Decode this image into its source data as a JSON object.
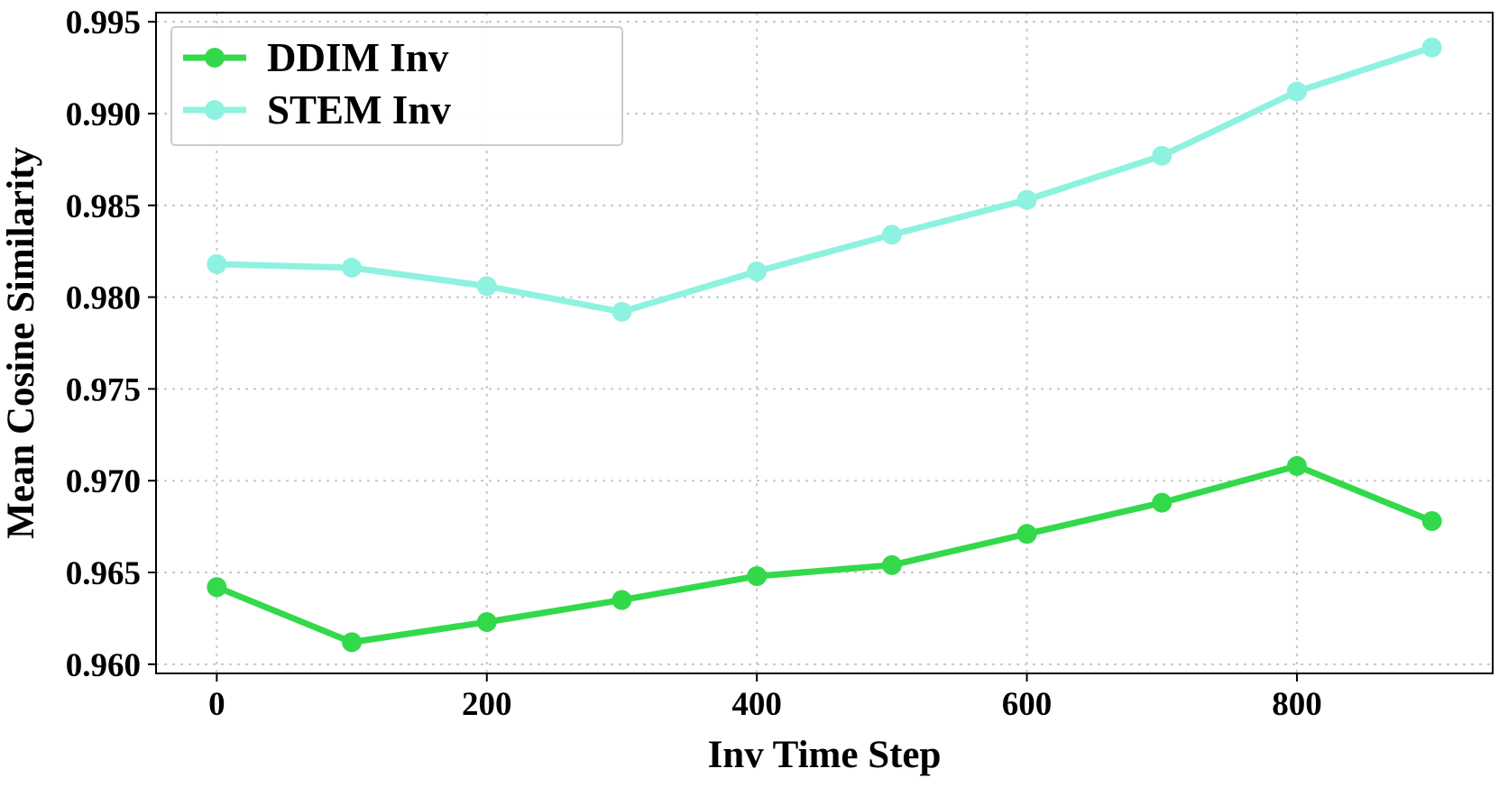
{
  "chart_data": {
    "type": "line",
    "title": "",
    "xlabel": "Inv Time Step",
    "ylabel": "Mean Cosine Similarity",
    "x": [
      0,
      100,
      200,
      300,
      400,
      500,
      600,
      700,
      800,
      900
    ],
    "xticks": [
      0,
      200,
      400,
      600,
      800
    ],
    "xtick_labels": [
      "0",
      "200",
      "400",
      "600",
      "800"
    ],
    "xlim": [
      -45,
      945
    ],
    "yticks": [
      0.96,
      0.965,
      0.97,
      0.975,
      0.98,
      0.985,
      0.99,
      0.995
    ],
    "ytick_labels": [
      "0.960",
      "0.965",
      "0.970",
      "0.975",
      "0.980",
      "0.985",
      "0.990",
      "0.995"
    ],
    "ylim": [
      0.9595,
      0.9955
    ],
    "grid": true,
    "legend_position": "top-left",
    "series": [
      {
        "name": "DDIM Inv",
        "color": "#33d94b",
        "values": [
          0.9642,
          0.9612,
          0.9623,
          0.9635,
          0.9648,
          0.9654,
          0.9671,
          0.9688,
          0.9708,
          0.9678
        ]
      },
      {
        "name": "STEM Inv",
        "color": "#8ef2e0",
        "values": [
          0.9818,
          0.9816,
          0.9806,
          0.9792,
          0.9814,
          0.9834,
          0.9853,
          0.9877,
          0.9912,
          0.9936
        ]
      }
    ]
  }
}
